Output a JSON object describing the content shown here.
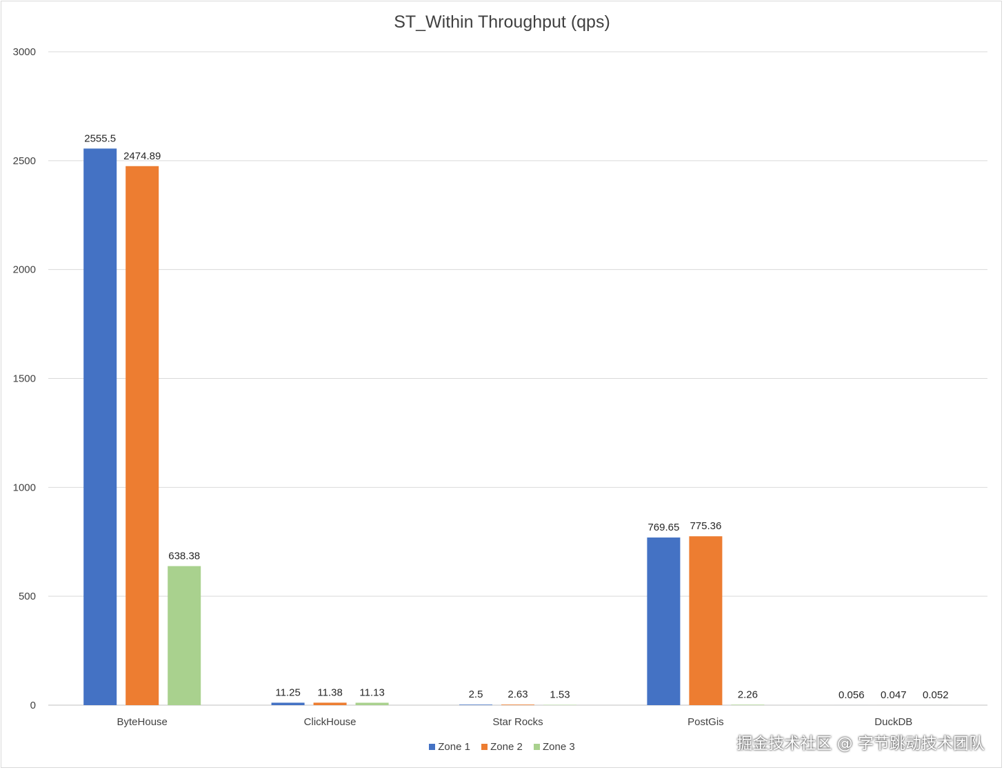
{
  "chart_data": {
    "type": "bar",
    "title": "ST_Within Throughput (qps)",
    "categories": [
      "ByteHouse",
      "ClickHouse",
      "Star Rocks",
      "PostGis",
      "DuckDB"
    ],
    "series": [
      {
        "name": "Zone 1",
        "color": "#4472c4",
        "values": [
          2555.5,
          11.25,
          2.5,
          769.65,
          0.056
        ],
        "labels": [
          "2555.5",
          "11.25",
          "2.5",
          "769.65",
          "0.056"
        ]
      },
      {
        "name": "Zone 2",
        "color": "#ed7d31",
        "values": [
          2474.89,
          11.38,
          2.63,
          775.36,
          0.047
        ],
        "labels": [
          "2474.89",
          "11.38",
          "2.63",
          "775.36",
          "0.047"
        ]
      },
      {
        "name": "Zone 3",
        "color": "#a9d18e",
        "values": [
          638.38,
          11.13,
          1.53,
          2.26,
          0.052
        ],
        "labels": [
          "638.38",
          "11.13",
          "1.53",
          "2.26",
          "0.052"
        ]
      }
    ],
    "ylim": [
      0,
      3000
    ],
    "yticks": [
      0,
      500,
      1000,
      1500,
      2000,
      2500,
      3000
    ],
    "grid": true,
    "legend": "bottom"
  },
  "watermark": "掘金技术社区 @ 字节跳动技术团队"
}
